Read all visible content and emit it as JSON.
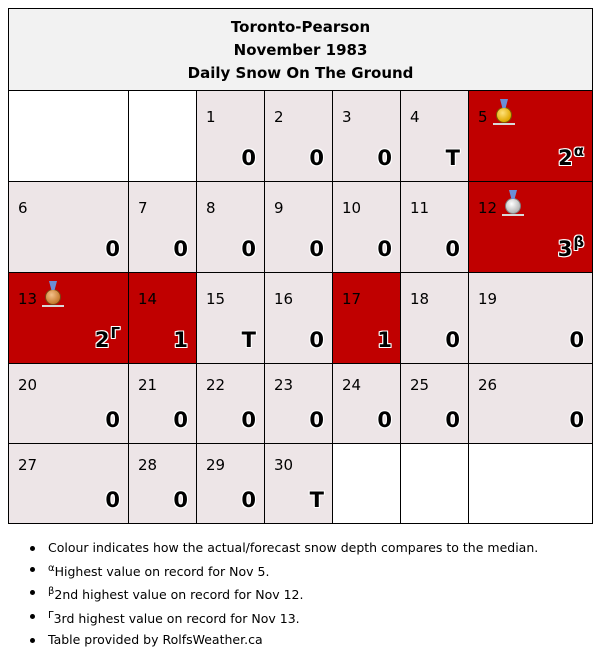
{
  "header": {
    "station": "Toronto-Pearson",
    "period": "November 1983",
    "subtitle": "Daily Snow On The Ground"
  },
  "days": [
    {
      "day": "1",
      "value": "0"
    },
    {
      "day": "2",
      "value": "0"
    },
    {
      "day": "3",
      "value": "0"
    },
    {
      "day": "4",
      "value": "T"
    },
    {
      "day": "5",
      "value": "2",
      "mark": "α"
    },
    {
      "day": "6",
      "value": "0"
    },
    {
      "day": "7",
      "value": "0"
    },
    {
      "day": "8",
      "value": "0"
    },
    {
      "day": "9",
      "value": "0"
    },
    {
      "day": "10",
      "value": "0"
    },
    {
      "day": "11",
      "value": "0"
    },
    {
      "day": "12",
      "value": "3",
      "mark": "β"
    },
    {
      "day": "13",
      "value": "2",
      "mark": "Γ"
    },
    {
      "day": "14",
      "value": "1"
    },
    {
      "day": "15",
      "value": "T"
    },
    {
      "day": "16",
      "value": "0"
    },
    {
      "day": "17",
      "value": "1"
    },
    {
      "day": "18",
      "value": "0"
    },
    {
      "day": "19",
      "value": "0"
    },
    {
      "day": "20",
      "value": "0"
    },
    {
      "day": "21",
      "value": "0"
    },
    {
      "day": "22",
      "value": "0"
    },
    {
      "day": "23",
      "value": "0"
    },
    {
      "day": "24",
      "value": "0"
    },
    {
      "day": "25",
      "value": "0"
    },
    {
      "day": "26",
      "value": "0"
    },
    {
      "day": "27",
      "value": "0"
    },
    {
      "day": "28",
      "value": "0"
    },
    {
      "day": "29",
      "value": "0"
    },
    {
      "day": "30",
      "value": "T"
    }
  ],
  "notes": [
    {
      "mark": "",
      "text": "Colour indicates how the actual/forecast snow depth compares to the median."
    },
    {
      "mark": "α",
      "text": "Highest value on record for Nov 5."
    },
    {
      "mark": "β",
      "text": "2nd highest value on record for Nov 12."
    },
    {
      "mark": "Γ",
      "text": "3rd highest value on record for Nov 13."
    },
    {
      "mark": "",
      "text": "Table provided by RolfsWeather.ca"
    }
  ],
  "colors": {
    "above_median": "#c00000",
    "normal": "#ede5e7",
    "header_bg": "#f2f2f2"
  },
  "icons": {
    "5": "gold-medal-icon",
    "12": "silver-medal-icon",
    "13": "bronze-medal-icon"
  }
}
